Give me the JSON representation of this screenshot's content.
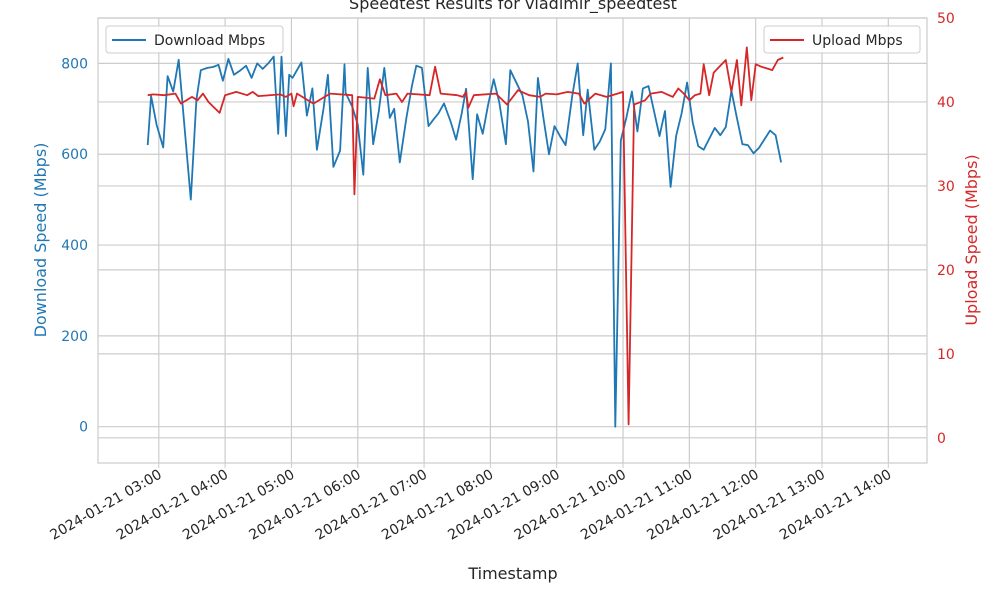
{
  "chart_data": {
    "type": "line",
    "title": "Speedtest Results for vladimir_speedtest",
    "xlabel": "Timestamp",
    "ylabel_left": "Download Speed (Mbps)",
    "ylabel_right": "Upload Speed (Mbps)",
    "x_ticks": [
      "2024-01-21 03:00",
      "2024-01-21 04:00",
      "2024-01-21 05:00",
      "2024-01-21 06:00",
      "2024-01-21 07:00",
      "2024-01-21 08:00",
      "2024-01-21 09:00",
      "2024-01-21 10:00",
      "2024-01-21 11:00",
      "2024-01-21 12:00",
      "2024-01-21 13:00",
      "2024-01-21 14:00"
    ],
    "x_range": [
      "2024-01-21 02:05",
      "2024-01-21 14:35"
    ],
    "y_left_range": [
      -80,
      900
    ],
    "y_left_ticks": [
      0,
      200,
      400,
      600,
      800
    ],
    "y_right_range": [
      -3,
      50
    ],
    "y_right_ticks": [
      0,
      10,
      20,
      30,
      40,
      50
    ],
    "grid": true,
    "legend_left": {
      "position": "upper-left",
      "label": "Download Mbps"
    },
    "legend_right": {
      "position": "upper-right",
      "label": "Upload Mbps"
    },
    "colors": {
      "download": "#1f77b4",
      "upload": "#d62728",
      "grid": "#cccccc",
      "axis_text": "#262626"
    },
    "series": [
      {
        "name": "Download Mbps",
        "axis": "left",
        "points": [
          [
            "02:50",
            620
          ],
          [
            "02:53",
            728
          ],
          [
            "02:58",
            665
          ],
          [
            "03:04",
            615
          ],
          [
            "03:08",
            772
          ],
          [
            "03:13",
            738
          ],
          [
            "03:18",
            808
          ],
          [
            "03:24",
            640
          ],
          [
            "03:29",
            500
          ],
          [
            "03:34",
            720
          ],
          [
            "03:38",
            785
          ],
          [
            "03:44",
            790
          ],
          [
            "03:49",
            792
          ],
          [
            "03:54",
            797
          ],
          [
            "03:58",
            762
          ],
          [
            "04:03",
            810
          ],
          [
            "04:08",
            775
          ],
          [
            "04:14",
            785
          ],
          [
            "04:19",
            795
          ],
          [
            "04:24",
            768
          ],
          [
            "04:29",
            800
          ],
          [
            "04:34",
            788
          ],
          [
            "04:39",
            800
          ],
          [
            "04:44",
            815
          ],
          [
            "04:48",
            645
          ],
          [
            "04:51",
            815
          ],
          [
            "04:55",
            640
          ],
          [
            "04:58",
            775
          ],
          [
            "05:01",
            768
          ],
          [
            "05:09",
            802
          ],
          [
            "05:14",
            685
          ],
          [
            "05:19",
            745
          ],
          [
            "05:23",
            610
          ],
          [
            "05:29",
            700
          ],
          [
            "05:33",
            775
          ],
          [
            "05:38",
            572
          ],
          [
            "05:44",
            608
          ],
          [
            "05:48",
            798
          ],
          [
            "05:49",
            735
          ],
          [
            "05:55",
            705
          ],
          [
            "06:00",
            665
          ],
          [
            "06:05",
            555
          ],
          [
            "06:09",
            790
          ],
          [
            "06:14",
            622
          ],
          [
            "06:19",
            695
          ],
          [
            "06:24",
            790
          ],
          [
            "06:29",
            680
          ],
          [
            "06:33",
            700
          ],
          [
            "06:38",
            582
          ],
          [
            "06:44",
            680
          ],
          [
            "06:49",
            750
          ],
          [
            "06:53",
            795
          ],
          [
            "06:58",
            790
          ],
          [
            "07:04",
            662
          ],
          [
            "07:09",
            678
          ],
          [
            "07:13",
            690
          ],
          [
            "07:18",
            712
          ],
          [
            "07:24",
            672
          ],
          [
            "07:29",
            632
          ],
          [
            "07:34",
            690
          ],
          [
            "07:38",
            744
          ],
          [
            "07:44",
            545
          ],
          [
            "07:48",
            688
          ],
          [
            "07:53",
            645
          ],
          [
            "07:58",
            710
          ],
          [
            "08:03",
            765
          ],
          [
            "08:08",
            715
          ],
          [
            "08:14",
            622
          ],
          [
            "08:18",
            785
          ],
          [
            "08:24",
            755
          ],
          [
            "08:29",
            730
          ],
          [
            "08:34",
            672
          ],
          [
            "08:39",
            562
          ],
          [
            "08:43",
            768
          ],
          [
            "08:48",
            680
          ],
          [
            "08:53",
            600
          ],
          [
            "08:58",
            662
          ],
          [
            "09:03",
            640
          ],
          [
            "09:08",
            620
          ],
          [
            "09:14",
            728
          ],
          [
            "09:19",
            800
          ],
          [
            "09:24",
            642
          ],
          [
            "09:28",
            742
          ],
          [
            "09:34",
            610
          ],
          [
            "09:39",
            628
          ],
          [
            "09:44",
            655
          ],
          [
            "09:49",
            800
          ],
          [
            "09:53",
            0
          ],
          [
            "09:58",
            630
          ],
          [
            "10:03",
            680
          ],
          [
            "10:08",
            738
          ],
          [
            "10:13",
            650
          ],
          [
            "10:18",
            745
          ],
          [
            "10:23",
            750
          ],
          [
            "10:28",
            695
          ],
          [
            "10:33",
            640
          ],
          [
            "10:38",
            695
          ],
          [
            "10:43",
            528
          ],
          [
            "10:48",
            640
          ],
          [
            "10:53",
            690
          ],
          [
            "10:58",
            758
          ],
          [
            "11:03",
            670
          ],
          [
            "11:08",
            618
          ],
          [
            "11:13",
            610
          ],
          [
            "11:23",
            658
          ],
          [
            "11:28",
            642
          ],
          [
            "11:33",
            660
          ],
          [
            "11:38",
            740
          ],
          [
            "11:43",
            680
          ],
          [
            "11:48",
            622
          ],
          [
            "11:53",
            620
          ],
          [
            "11:58",
            602
          ],
          [
            "12:03",
            614
          ],
          [
            "12:13",
            652
          ],
          [
            "12:18",
            642
          ],
          [
            "12:23",
            582
          ]
        ]
      },
      {
        "name": "Upload Mbps",
        "axis": "right",
        "points": [
          [
            "02:50",
            40.8
          ],
          [
            "02:55",
            40.9
          ],
          [
            "03:05",
            40.8
          ],
          [
            "03:15",
            41.0
          ],
          [
            "03:20",
            39.8
          ],
          [
            "03:30",
            40.6
          ],
          [
            "03:35",
            40.2
          ],
          [
            "03:40",
            41.0
          ],
          [
            "03:45",
            40.0
          ],
          [
            "03:55",
            38.7
          ],
          [
            "04:00",
            40.8
          ],
          [
            "04:10",
            41.2
          ],
          [
            "04:20",
            40.8
          ],
          [
            "04:25",
            41.2
          ],
          [
            "04:30",
            40.7
          ],
          [
            "04:50",
            40.9
          ],
          [
            "04:55",
            40.6
          ],
          [
            "05:00",
            41.0
          ],
          [
            "05:02",
            39.5
          ],
          [
            "05:05",
            41.0
          ],
          [
            "05:20",
            39.8
          ],
          [
            "05:30",
            40.6
          ],
          [
            "05:35",
            41.0
          ],
          [
            "05:55",
            40.8
          ],
          [
            "05:57",
            29.0
          ],
          [
            "06:00",
            40.6
          ],
          [
            "06:15",
            40.4
          ],
          [
            "06:20",
            42.7
          ],
          [
            "06:25",
            40.8
          ],
          [
            "06:35",
            41.0
          ],
          [
            "06:40",
            40.0
          ],
          [
            "06:45",
            41.0
          ],
          [
            "07:05",
            40.8
          ],
          [
            "07:10",
            44.2
          ],
          [
            "07:15",
            41.0
          ],
          [
            "07:30",
            40.8
          ],
          [
            "07:35",
            40.6
          ],
          [
            "07:38",
            41.2
          ],
          [
            "07:40",
            39.3
          ],
          [
            "07:45",
            40.8
          ],
          [
            "08:05",
            41.0
          ],
          [
            "08:15",
            39.7
          ],
          [
            "08:25",
            41.4
          ],
          [
            "08:35",
            40.8
          ],
          [
            "08:45",
            40.6
          ],
          [
            "08:50",
            41.0
          ],
          [
            "09:00",
            40.9
          ],
          [
            "09:10",
            41.2
          ],
          [
            "09:20",
            41.0
          ],
          [
            "09:25",
            39.8
          ],
          [
            "09:35",
            41.0
          ],
          [
            "09:45",
            40.6
          ],
          [
            "09:55",
            41.0
          ],
          [
            "10:00",
            41.2
          ],
          [
            "10:05",
            1.6
          ],
          [
            "10:10",
            39.7
          ],
          [
            "10:20",
            40.2
          ],
          [
            "10:25",
            41.0
          ],
          [
            "10:35",
            41.2
          ],
          [
            "10:45",
            40.6
          ],
          [
            "10:50",
            41.6
          ],
          [
            "10:55",
            41.0
          ],
          [
            "11:00",
            40.2
          ],
          [
            "11:05",
            40.8
          ],
          [
            "11:10",
            41.0
          ],
          [
            "11:13",
            44.5
          ],
          [
            "11:18",
            40.8
          ],
          [
            "11:22",
            43.5
          ],
          [
            "11:33",
            45.0
          ],
          [
            "11:38",
            41.2
          ],
          [
            "11:43",
            45.0
          ],
          [
            "11:47",
            39.6
          ],
          [
            "11:52",
            46.5
          ],
          [
            "11:56",
            40.2
          ],
          [
            "12:00",
            44.5
          ],
          [
            "12:05",
            44.2
          ],
          [
            "12:10",
            44.0
          ],
          [
            "12:15",
            43.8
          ],
          [
            "12:20",
            45.0
          ],
          [
            "12:25",
            45.3
          ]
        ]
      }
    ]
  }
}
